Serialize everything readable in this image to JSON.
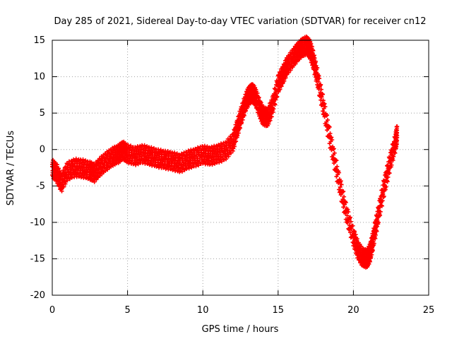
{
  "chart_data": {
    "type": "scatter",
    "title": "Day 285 of 2021, Sidereal Day-to-day VTEC variation (SDTVAR) for receiver cn12",
    "xlabel": "GPS time / hours",
    "ylabel": "SDTVAR / TECUs",
    "xlim": [
      0,
      25
    ],
    "ylim": [
      -20,
      15
    ],
    "xticks": [
      0,
      5,
      10,
      15,
      20,
      25
    ],
    "yticks": [
      -20,
      -15,
      -10,
      -5,
      0,
      5,
      10,
      15
    ],
    "grid": true,
    "marker": "+",
    "series": [
      {
        "name": "SDTVAR",
        "color": "#ff0000",
        "x": [
          0.0,
          0.3,
          0.6,
          1.0,
          1.5,
          2.0,
          2.5,
          2.8,
          3.2,
          3.6,
          4.0,
          4.4,
          4.7,
          5.0,
          5.5,
          6.0,
          6.5,
          7.0,
          7.5,
          8.0,
          8.5,
          9.0,
          9.5,
          10.0,
          10.5,
          11.0,
          11.5,
          12.0,
          12.3,
          12.6,
          12.9,
          13.1,
          13.3,
          13.5,
          13.8,
          14.0,
          14.3,
          14.6,
          15.0,
          15.3,
          15.6,
          16.0,
          16.3,
          16.6,
          16.9,
          17.1,
          17.3,
          17.6,
          18.0,
          18.5,
          19.0,
          19.5,
          20.0,
          20.3,
          20.6,
          20.9,
          21.1,
          21.3,
          21.6,
          22.0,
          22.4,
          22.8,
          22.9
        ],
        "values": [
          -2.6,
          -3.2,
          -4.6,
          -3.0,
          -2.5,
          -2.6,
          -2.9,
          -3.2,
          -2.3,
          -1.6,
          -1.0,
          -0.6,
          -0.1,
          -0.6,
          -0.9,
          -0.6,
          -0.9,
          -1.2,
          -1.4,
          -1.6,
          -1.9,
          -1.4,
          -1.1,
          -0.7,
          -0.9,
          -0.6,
          -0.2,
          1.0,
          3.0,
          5.0,
          6.8,
          7.5,
          7.8,
          7.2,
          5.5,
          4.6,
          4.4,
          5.8,
          9.0,
          10.2,
          11.5,
          12.6,
          13.4,
          14.0,
          14.3,
          13.8,
          12.6,
          10.0,
          6.0,
          1.0,
          -4.0,
          -8.5,
          -12.0,
          -13.8,
          -14.8,
          -15.0,
          -14.2,
          -12.5,
          -9.5,
          -5.5,
          -2.0,
          1.0,
          2.2
        ],
        "band": 0.9
      }
    ]
  }
}
